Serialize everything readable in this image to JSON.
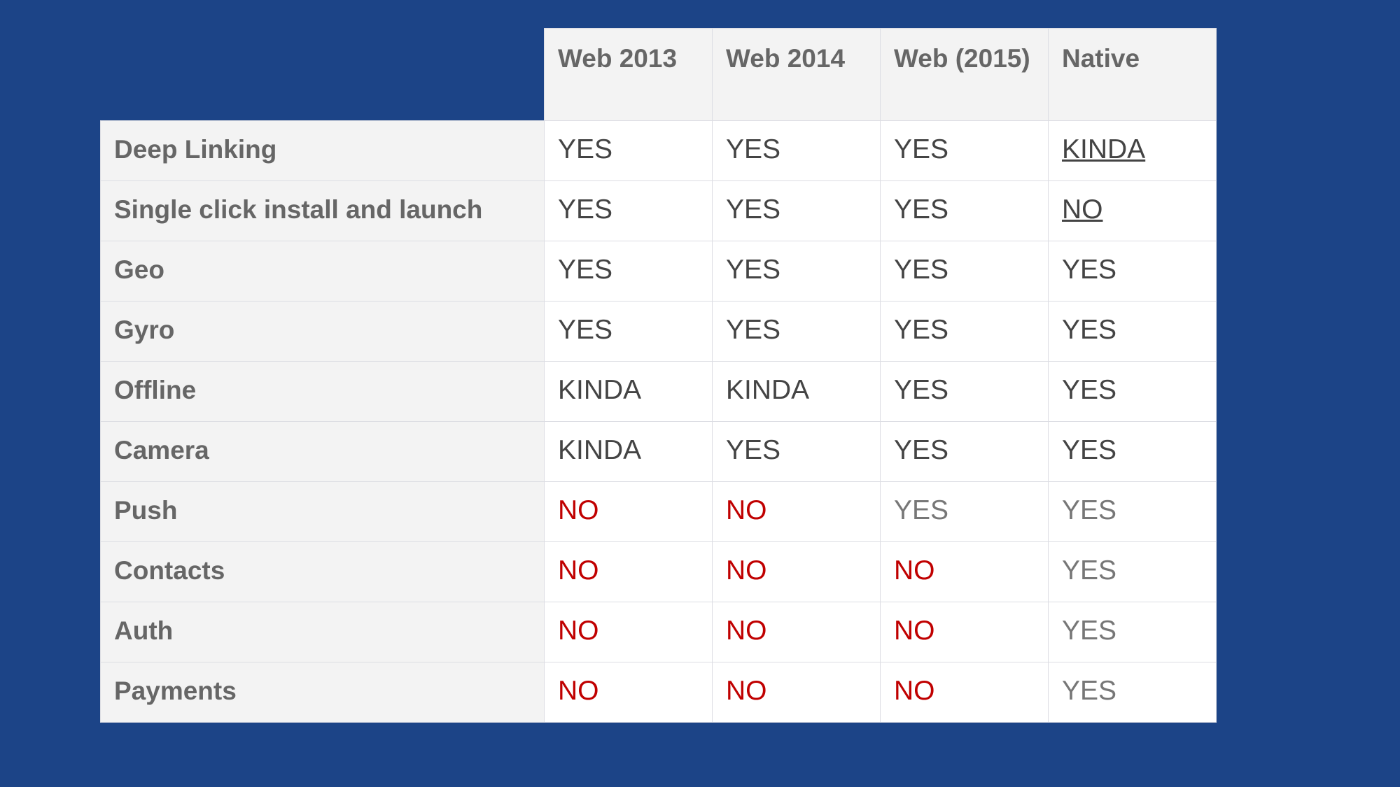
{
  "colors": {
    "background": "#1c4487",
    "no": "#c00000",
    "yes": "#444444",
    "yes_light": "#777777",
    "header_bg": "#f3f3f3"
  },
  "table": {
    "columns": [
      "Web 2013",
      "Web 2014",
      "Web (2015)",
      "Native"
    ],
    "rows": [
      {
        "label": "Deep Linking",
        "cells": [
          {
            "text": "YES",
            "style": "yes"
          },
          {
            "text": "YES",
            "style": "yes"
          },
          {
            "text": "YES",
            "style": "yes"
          },
          {
            "text": "KINDA",
            "style": "kinda",
            "underline": true
          }
        ]
      },
      {
        "label": "Single click install and launch",
        "cells": [
          {
            "text": "YES",
            "style": "yes"
          },
          {
            "text": "YES",
            "style": "yes"
          },
          {
            "text": "YES",
            "style": "yes"
          },
          {
            "text": "NO",
            "style": "yes",
            "underline": true
          }
        ]
      },
      {
        "label": "Geo",
        "cells": [
          {
            "text": "YES",
            "style": "yes"
          },
          {
            "text": "YES",
            "style": "yes"
          },
          {
            "text": "YES",
            "style": "yes"
          },
          {
            "text": "YES",
            "style": "yes"
          }
        ]
      },
      {
        "label": "Gyro",
        "cells": [
          {
            "text": "YES",
            "style": "yes"
          },
          {
            "text": "YES",
            "style": "yes"
          },
          {
            "text": "YES",
            "style": "yes"
          },
          {
            "text": "YES",
            "style": "yes"
          }
        ]
      },
      {
        "label": "Offline",
        "cells": [
          {
            "text": "KINDA",
            "style": "kinda"
          },
          {
            "text": "KINDA",
            "style": "kinda"
          },
          {
            "text": "YES",
            "style": "yes"
          },
          {
            "text": "YES",
            "style": "yes"
          }
        ]
      },
      {
        "label": "Camera",
        "cells": [
          {
            "text": "KINDA",
            "style": "kinda"
          },
          {
            "text": "YES",
            "style": "yes"
          },
          {
            "text": "YES",
            "style": "yes"
          },
          {
            "text": "YES",
            "style": "yes"
          }
        ]
      },
      {
        "label": "Push",
        "cells": [
          {
            "text": "NO",
            "style": "no"
          },
          {
            "text": "NO",
            "style": "no"
          },
          {
            "text": "YES",
            "style": "light"
          },
          {
            "text": "YES",
            "style": "light"
          }
        ]
      },
      {
        "label": "Contacts",
        "cells": [
          {
            "text": "NO",
            "style": "no"
          },
          {
            "text": "NO",
            "style": "no"
          },
          {
            "text": "NO",
            "style": "no"
          },
          {
            "text": "YES",
            "style": "light"
          }
        ]
      },
      {
        "label": "Auth",
        "cells": [
          {
            "text": "NO",
            "style": "no"
          },
          {
            "text": "NO",
            "style": "no"
          },
          {
            "text": "NO",
            "style": "no"
          },
          {
            "text": "YES",
            "style": "light"
          }
        ]
      },
      {
        "label": "Payments",
        "cells": [
          {
            "text": "NO",
            "style": "no"
          },
          {
            "text": "NO",
            "style": "no"
          },
          {
            "text": "NO",
            "style": "no"
          },
          {
            "text": "YES",
            "style": "light"
          }
        ]
      }
    ]
  }
}
